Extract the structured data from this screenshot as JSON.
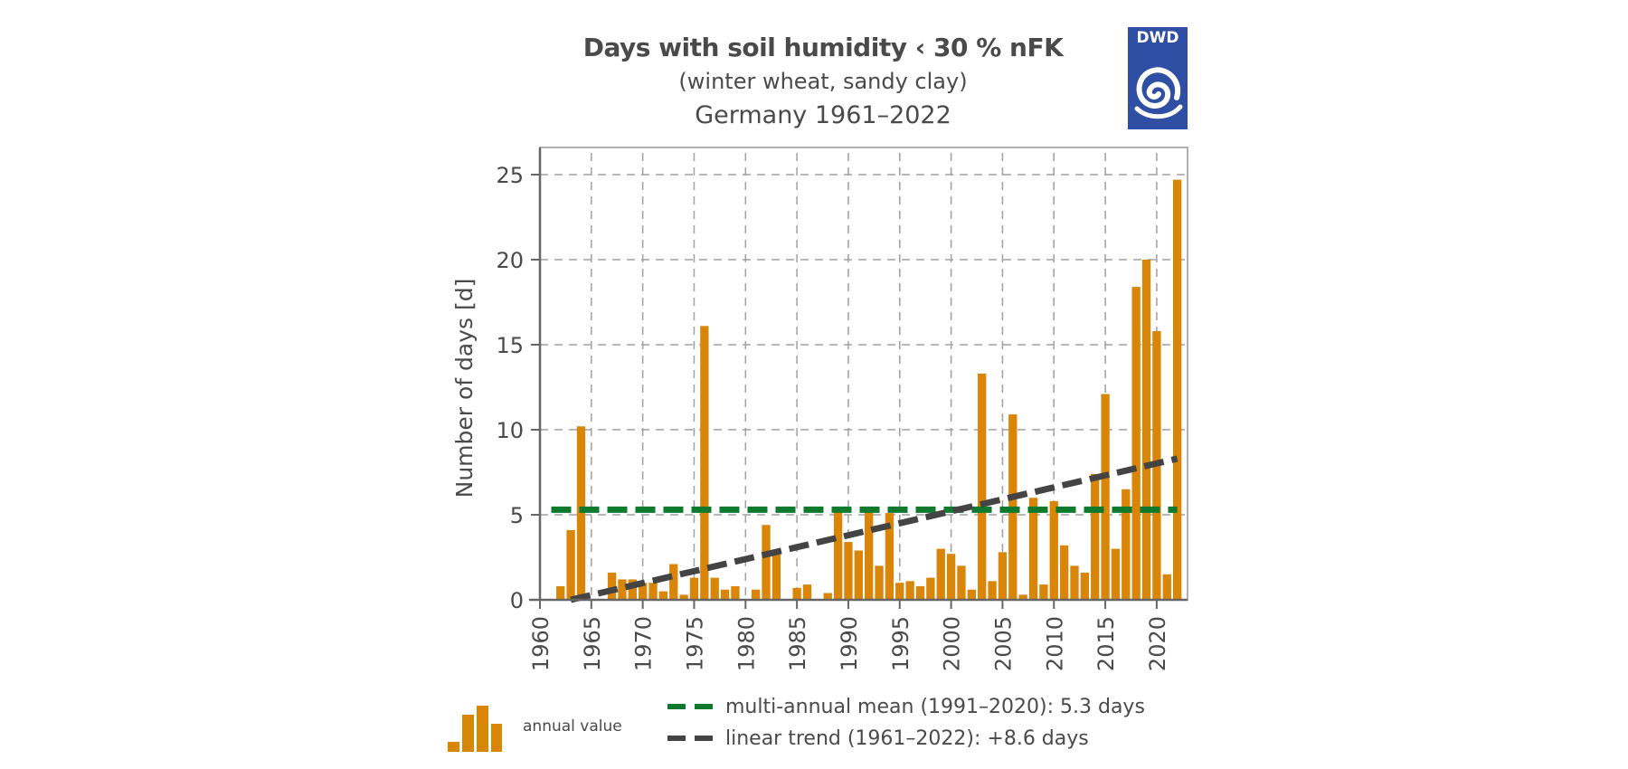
{
  "header": {
    "title": "Days with soil humidity ‹ 30 % nFK",
    "subtitle": "(winter wheat, sandy clay)",
    "region_period": "Germany 1961–2022",
    "logo_text": "DWD"
  },
  "colors": {
    "bar": "#d98508",
    "mean_line": "#0f7a2e",
    "trend_line": "#444444",
    "grid": "#a0a0a0",
    "axis": "#666666",
    "text": "#4a4a4a",
    "logo_bg": "#2e4fa3"
  },
  "legend": {
    "annual": "annual value",
    "mean": "multi-annual mean (1991–2020): 5.3 days",
    "trend": "linear trend (1961–2022): +8.6 days"
  },
  "chart_data": {
    "type": "bar",
    "title": "Days with soil humidity ‹ 30 % nFK",
    "subtitle": "(winter wheat, sandy clay) Germany 1961–2022",
    "xlabel": "",
    "ylabel": "Number of days [d]",
    "xlim": [
      1960,
      2023
    ],
    "ylim": [
      0,
      26.5
    ],
    "xticks": [
      1960,
      1965,
      1970,
      1975,
      1980,
      1985,
      1990,
      1995,
      2000,
      2005,
      2010,
      2015,
      2020
    ],
    "yticks": [
      0,
      5,
      10,
      15,
      20,
      25
    ],
    "grid": true,
    "legend_position": "bottom",
    "x": [
      1961,
      1962,
      1963,
      1964,
      1965,
      1966,
      1967,
      1968,
      1969,
      1970,
      1971,
      1972,
      1973,
      1974,
      1975,
      1976,
      1977,
      1978,
      1979,
      1980,
      1981,
      1982,
      1983,
      1984,
      1985,
      1986,
      1987,
      1988,
      1989,
      1990,
      1991,
      1992,
      1993,
      1994,
      1995,
      1996,
      1997,
      1998,
      1999,
      2000,
      2001,
      2002,
      2003,
      2004,
      2005,
      2006,
      2007,
      2008,
      2009,
      2010,
      2011,
      2012,
      2013,
      2014,
      2015,
      2016,
      2017,
      2018,
      2019,
      2020,
      2021,
      2022
    ],
    "series": [
      {
        "name": "annual value",
        "values": [
          0.0,
          0.8,
          4.1,
          10.2,
          0.0,
          0.0,
          1.6,
          1.2,
          1.2,
          1.0,
          1.0,
          0.5,
          2.1,
          0.3,
          1.3,
          16.1,
          1.3,
          0.6,
          0.8,
          0.0,
          0.6,
          4.4,
          2.7,
          0.0,
          0.7,
          0.9,
          0.0,
          0.4,
          5.3,
          3.4,
          2.9,
          5.3,
          2.0,
          5.1,
          1.0,
          1.1,
          0.8,
          1.3,
          3.0,
          2.7,
          2.0,
          0.6,
          13.3,
          1.1,
          2.8,
          10.9,
          0.3,
          6.0,
          0.9,
          5.8,
          3.2,
          2.0,
          1.6,
          7.4,
          12.1,
          3.0,
          6.5,
          18.4,
          20.0,
          15.8,
          1.5,
          24.7
        ]
      }
    ],
    "mean": {
      "label": "multi-annual mean (1991–2020)",
      "value": 5.3,
      "period": [
        1991,
        2020
      ],
      "x_range": [
        1961,
        2022
      ]
    },
    "trend": {
      "label": "linear trend (1961–2022)",
      "change": 8.6,
      "start": {
        "x": 1963,
        "y": 0.0
      },
      "end": {
        "x": 2022,
        "y": 8.3
      }
    }
  }
}
